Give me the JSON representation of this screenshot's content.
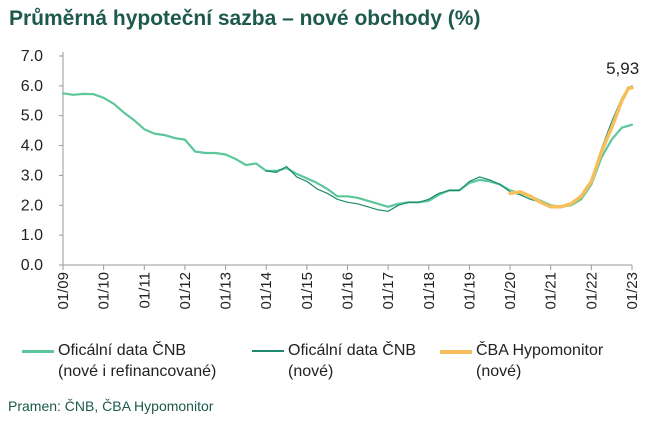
{
  "title": "Průměrná hypoteční sazba – nové obchody (%)",
  "source": "Pramen: ČNB, ČBA Hypomonitor",
  "legend": [
    {
      "label": "Oficální data ČNB\n(nové i refinancované)",
      "color": "#5cc79b"
    },
    {
      "label": "Oficální data ČNB\n(nové)",
      "color": "#1f8a70"
    },
    {
      "label": "ČBA Hypomonitor\n(nové)",
      "color": "#f6bf5b"
    }
  ],
  "chart_data": {
    "type": "line",
    "title": "Průměrná hypoteční sazba – nové obchody (%)",
    "xlabel": "",
    "ylabel": "",
    "ylim": [
      0,
      7
    ],
    "yticks": [
      "0.0",
      "1.0",
      "2.0",
      "3.0",
      "4.0",
      "5.0",
      "6.0",
      "7.0"
    ],
    "xticks": [
      "01/09",
      "01/10",
      "01/11",
      "01/12",
      "01/13",
      "01/14",
      "01/15",
      "01/16",
      "01/17",
      "01/18",
      "01/19",
      "01/20",
      "01/21",
      "01/22",
      "01/23"
    ],
    "grid": false,
    "annotation": {
      "text": "5,93",
      "x": "12/22",
      "y": 5.93
    },
    "series": [
      {
        "name": "Oficální data ČNB (nové i refinancované)",
        "color": "#5cc79b",
        "points": [
          [
            "01/09",
            5.75
          ],
          [
            "04/09",
            5.7
          ],
          [
            "07/09",
            5.73
          ],
          [
            "10/09",
            5.72
          ],
          [
            "01/10",
            5.6
          ],
          [
            "04/10",
            5.4
          ],
          [
            "07/10",
            5.1
          ],
          [
            "10/10",
            4.85
          ],
          [
            "01/11",
            4.55
          ],
          [
            "04/11",
            4.4
          ],
          [
            "07/11",
            4.35
          ],
          [
            "10/11",
            4.25
          ],
          [
            "01/12",
            4.2
          ],
          [
            "04/12",
            3.8
          ],
          [
            "07/12",
            3.75
          ],
          [
            "10/12",
            3.75
          ],
          [
            "01/13",
            3.7
          ],
          [
            "04/13",
            3.55
          ],
          [
            "07/13",
            3.35
          ],
          [
            "10/13",
            3.4
          ],
          [
            "01/14",
            3.15
          ],
          [
            "04/14",
            3.15
          ],
          [
            "07/14",
            3.25
          ],
          [
            "10/14",
            3.05
          ],
          [
            "01/15",
            2.9
          ],
          [
            "04/15",
            2.75
          ],
          [
            "07/15",
            2.55
          ],
          [
            "10/15",
            2.3
          ],
          [
            "01/16",
            2.3
          ],
          [
            "04/16",
            2.25
          ],
          [
            "07/16",
            2.15
          ],
          [
            "10/16",
            2.05
          ],
          [
            "01/17",
            1.95
          ],
          [
            "04/17",
            2.05
          ],
          [
            "07/17",
            2.1
          ],
          [
            "10/17",
            2.1
          ],
          [
            "01/18",
            2.15
          ],
          [
            "04/18",
            2.35
          ],
          [
            "07/18",
            2.5
          ],
          [
            "10/18",
            2.5
          ],
          [
            "01/19",
            2.75
          ],
          [
            "04/19",
            2.85
          ],
          [
            "07/19",
            2.8
          ],
          [
            "10/19",
            2.7
          ],
          [
            "01/20",
            2.5
          ],
          [
            "04/20",
            2.4
          ],
          [
            "07/20",
            2.3
          ],
          [
            "10/20",
            2.15
          ],
          [
            "01/21",
            2.0
          ],
          [
            "04/21",
            1.95
          ],
          [
            "07/21",
            2.0
          ],
          [
            "10/21",
            2.2
          ],
          [
            "01/22",
            2.7
          ],
          [
            "04/22",
            3.6
          ],
          [
            "07/22",
            4.2
          ],
          [
            "10/22",
            4.6
          ],
          [
            "01/23",
            4.7
          ]
        ]
      },
      {
        "name": "Oficální data ČNB (nové)",
        "color": "#1f8a70",
        "points": [
          [
            "01/14",
            3.15
          ],
          [
            "04/14",
            3.1
          ],
          [
            "07/14",
            3.3
          ],
          [
            "10/14",
            2.95
          ],
          [
            "01/15",
            2.8
          ],
          [
            "04/15",
            2.55
          ],
          [
            "07/15",
            2.4
          ],
          [
            "10/15",
            2.2
          ],
          [
            "01/16",
            2.1
          ],
          [
            "04/16",
            2.05
          ],
          [
            "07/16",
            1.95
          ],
          [
            "10/16",
            1.85
          ],
          [
            "01/17",
            1.8
          ],
          [
            "04/17",
            2.0
          ],
          [
            "07/17",
            2.1
          ],
          [
            "10/17",
            2.1
          ],
          [
            "01/18",
            2.2
          ],
          [
            "04/18",
            2.4
          ],
          [
            "07/18",
            2.5
          ],
          [
            "10/18",
            2.5
          ],
          [
            "01/19",
            2.8
          ],
          [
            "04/19",
            2.95
          ],
          [
            "07/19",
            2.85
          ],
          [
            "10/19",
            2.7
          ],
          [
            "01/20",
            2.45
          ],
          [
            "04/20",
            2.35
          ],
          [
            "07/20",
            2.2
          ],
          [
            "10/20",
            2.1
          ],
          [
            "01/21",
            1.95
          ],
          [
            "04/21",
            1.95
          ],
          [
            "07/21",
            2.05
          ],
          [
            "10/21",
            2.25
          ],
          [
            "01/22",
            2.8
          ],
          [
            "04/22",
            3.9
          ],
          [
            "07/22",
            4.8
          ],
          [
            "10/22",
            5.6
          ],
          [
            "01/23",
            6.0
          ]
        ]
      },
      {
        "name": "ČBA Hypomonitor (nové)",
        "color": "#f6bf5b",
        "points": [
          [
            "01/20",
            2.4
          ],
          [
            "04/20",
            2.45
          ],
          [
            "07/20",
            2.3
          ],
          [
            "10/20",
            2.1
          ],
          [
            "01/21",
            1.95
          ],
          [
            "04/21",
            1.95
          ],
          [
            "07/21",
            2.05
          ],
          [
            "10/21",
            2.3
          ],
          [
            "01/22",
            2.8
          ],
          [
            "04/22",
            3.8
          ],
          [
            "07/22",
            4.6
          ],
          [
            "10/22",
            5.5
          ],
          [
            "12/22",
            5.93
          ],
          [
            "01/23",
            5.93
          ]
        ]
      }
    ]
  }
}
